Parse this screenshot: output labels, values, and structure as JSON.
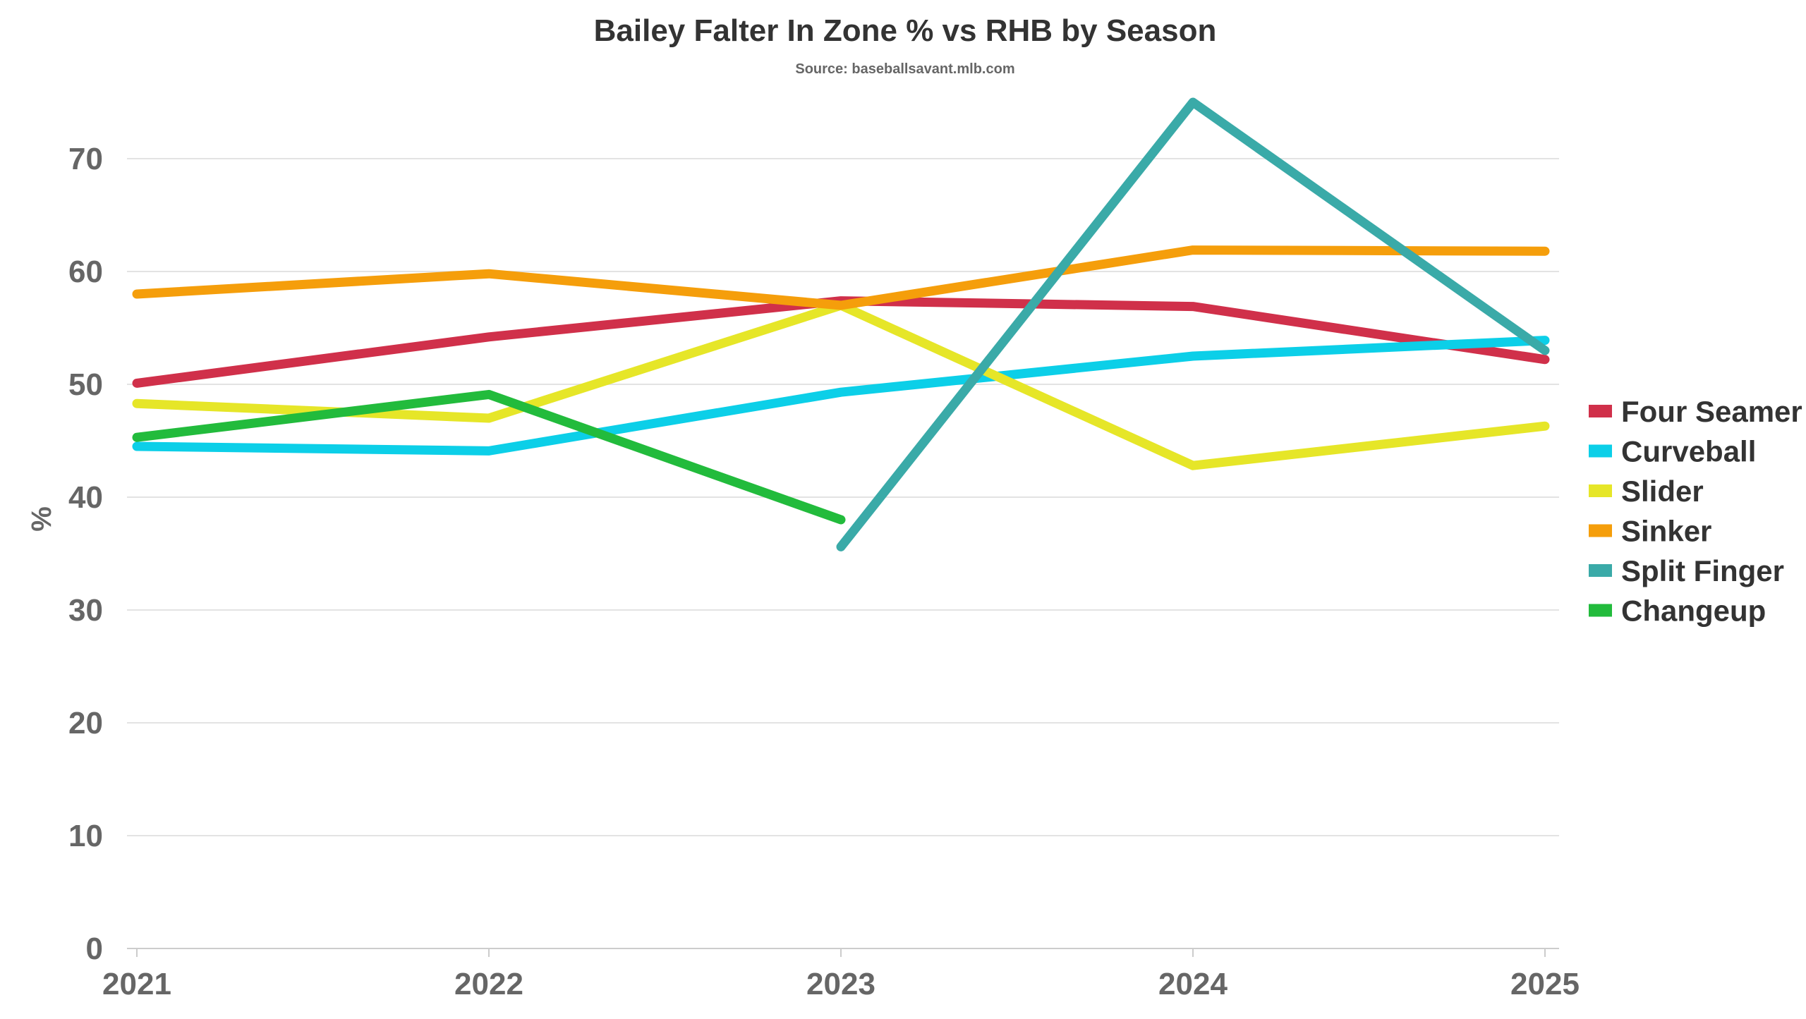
{
  "chart_data": {
    "type": "line",
    "title": "Bailey Falter In Zone % vs RHB by Season",
    "subtitle": "Source: baseballsavant.mlb.com",
    "ylabel": "%",
    "xlabel": "",
    "x": [
      "2021",
      "2022",
      "2023",
      "2024",
      "2025"
    ],
    "ylim": [
      0,
      75
    ],
    "yticks": [
      0,
      10,
      20,
      30,
      40,
      50,
      60,
      70
    ],
    "grid": true,
    "legend_position": "right",
    "series": [
      {
        "name": "Four Seamer",
        "color": "#d0304a",
        "values": [
          50.1,
          54.2,
          57.4,
          56.9,
          52.2
        ]
      },
      {
        "name": "Curveball",
        "color": "#0ccfe8",
        "values": [
          44.5,
          44.1,
          49.3,
          52.5,
          53.9
        ]
      },
      {
        "name": "Slider",
        "color": "#e6e628",
        "values": [
          48.3,
          47.0,
          57.0,
          42.8,
          46.3
        ]
      },
      {
        "name": "Sinker",
        "color": "#f59e0b",
        "values": [
          58.0,
          59.8,
          57.0,
          61.9,
          61.8
        ]
      },
      {
        "name": "Split Finger",
        "color": "#3aaaa8",
        "values": [
          null,
          null,
          35.6,
          75.0,
          53.0
        ]
      },
      {
        "name": "Changeup",
        "color": "#22bb3c",
        "values": [
          45.3,
          49.1,
          38.0,
          null,
          null
        ]
      }
    ]
  }
}
